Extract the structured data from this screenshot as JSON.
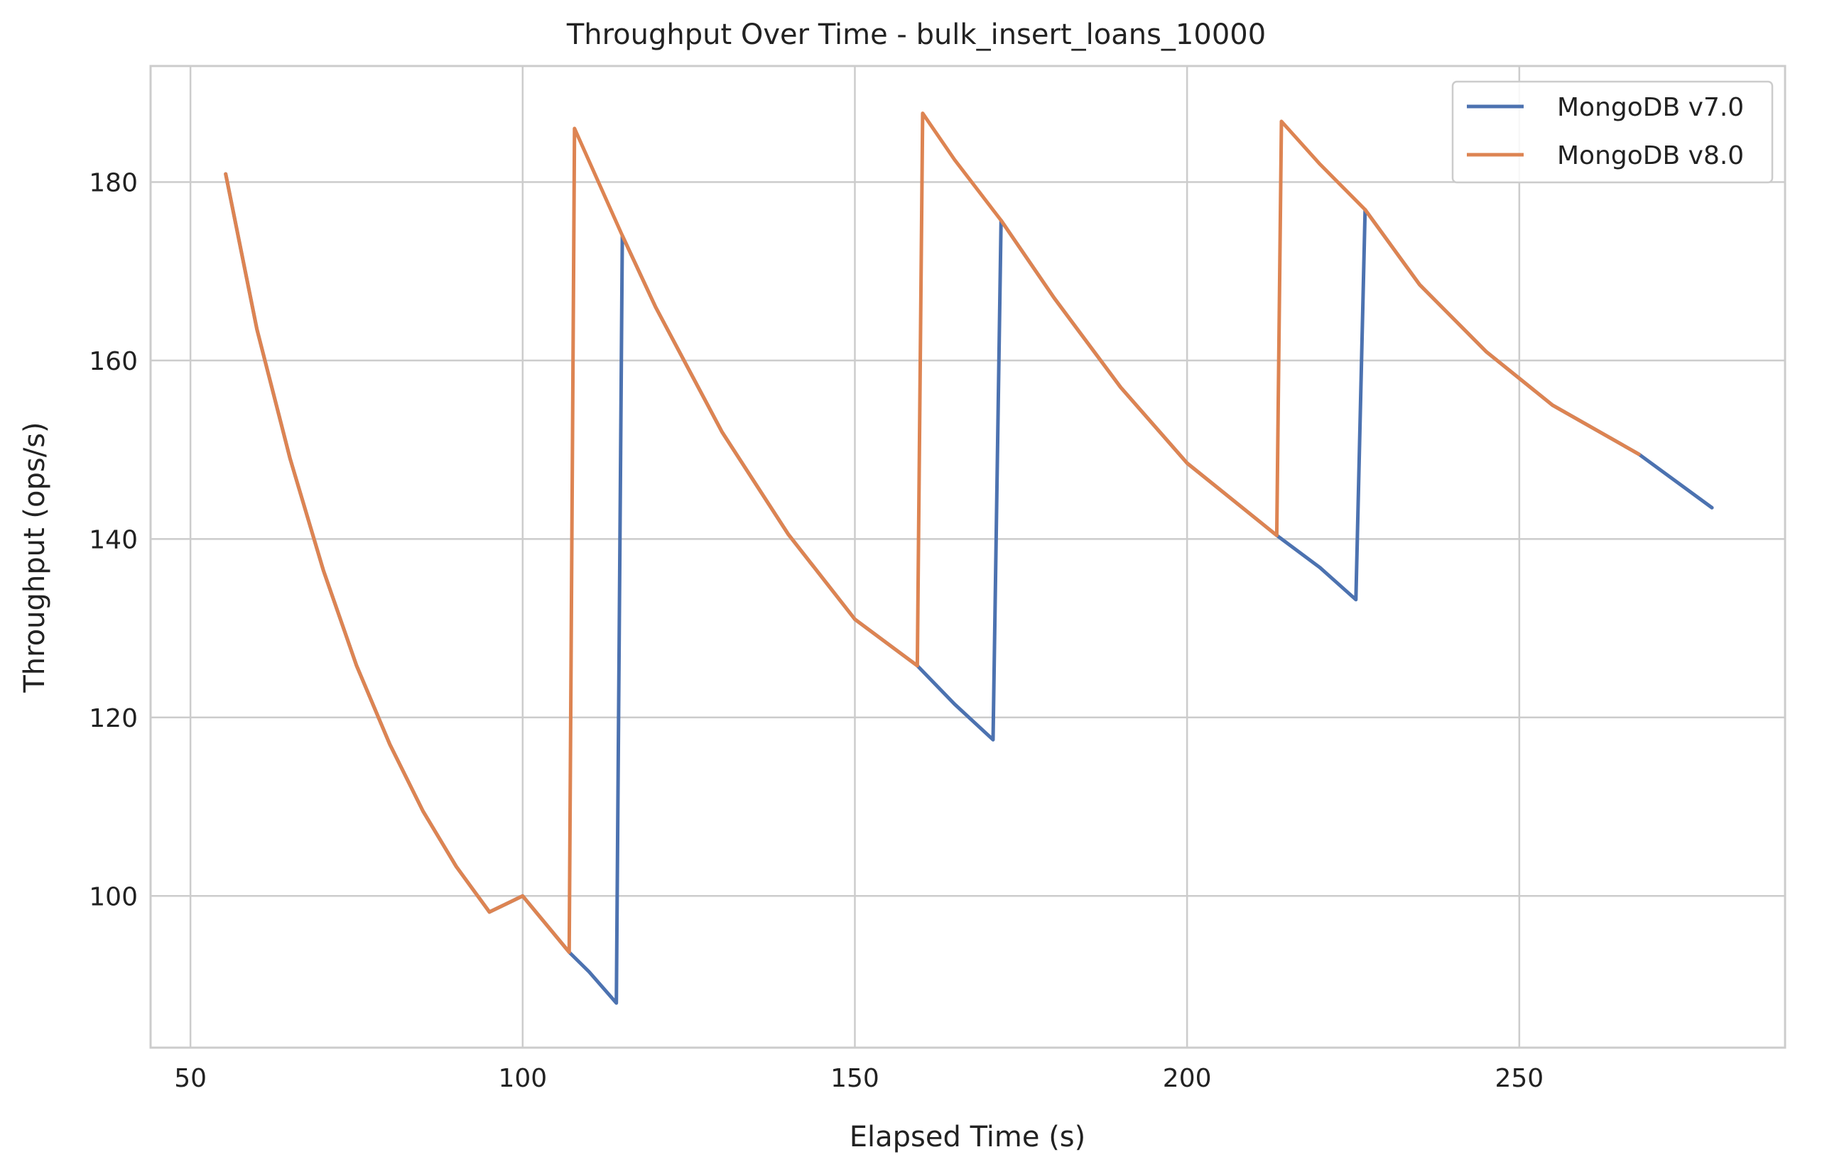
{
  "chart_data": {
    "type": "line",
    "title": "Throughput Over Time - bulk_insert_loans_10000",
    "xlabel": "Elapsed Time (s)",
    "ylabel": "Throughput (ops/s)",
    "xlim": [
      44,
      290
    ],
    "ylim": [
      83,
      193
    ],
    "xticks": [
      50,
      100,
      150,
      200,
      250
    ],
    "yticks": [
      100,
      120,
      140,
      160,
      180
    ],
    "grid": true,
    "legend_position": "top-right",
    "series": [
      {
        "name": "MongoDB v7.0",
        "color": "#4c72b0",
        "x": [
          55.3,
          60,
          65,
          70,
          75,
          80,
          85,
          90,
          95,
          100,
          107,
          110,
          114.1,
          115,
          120,
          130,
          140,
          150,
          159.4,
          165,
          170.8,
          172,
          180,
          190,
          200,
          213.5,
          220,
          225.4,
          226.8,
          235,
          245,
          255,
          268,
          279
        ],
        "y": [
          180.9,
          163.5,
          149,
          136.5,
          125.8,
          117,
          109.5,
          103.3,
          98.2,
          100,
          93.7,
          91.5,
          88,
          174,
          166,
          152,
          140.5,
          131,
          125.8,
          121.5,
          117.5,
          175.7,
          167,
          157,
          148.5,
          140.4,
          136.8,
          133.2,
          176.9,
          168.5,
          161,
          155,
          149.5,
          143.5
        ]
      },
      {
        "name": "MongoDB v8.0",
        "color": "#dd8452",
        "x": [
          55.3,
          60,
          65,
          70,
          75,
          80,
          85,
          90,
          95,
          100,
          107,
          107.8,
          115,
          120,
          130,
          140,
          150,
          159.4,
          160.2,
          165,
          172,
          180,
          190,
          200,
          213.5,
          214.2,
          220,
          226.8,
          235,
          245,
          255,
          268
        ],
        "y": [
          180.9,
          163.5,
          149,
          136.5,
          125.8,
          117,
          109.5,
          103.3,
          98.2,
          100,
          93.7,
          186,
          174,
          166,
          152,
          140.5,
          131,
          125.8,
          187.7,
          182.5,
          175.7,
          167,
          157,
          148.5,
          140.4,
          186.8,
          182,
          176.9,
          168.5,
          161,
          155,
          149.5
        ]
      }
    ]
  }
}
